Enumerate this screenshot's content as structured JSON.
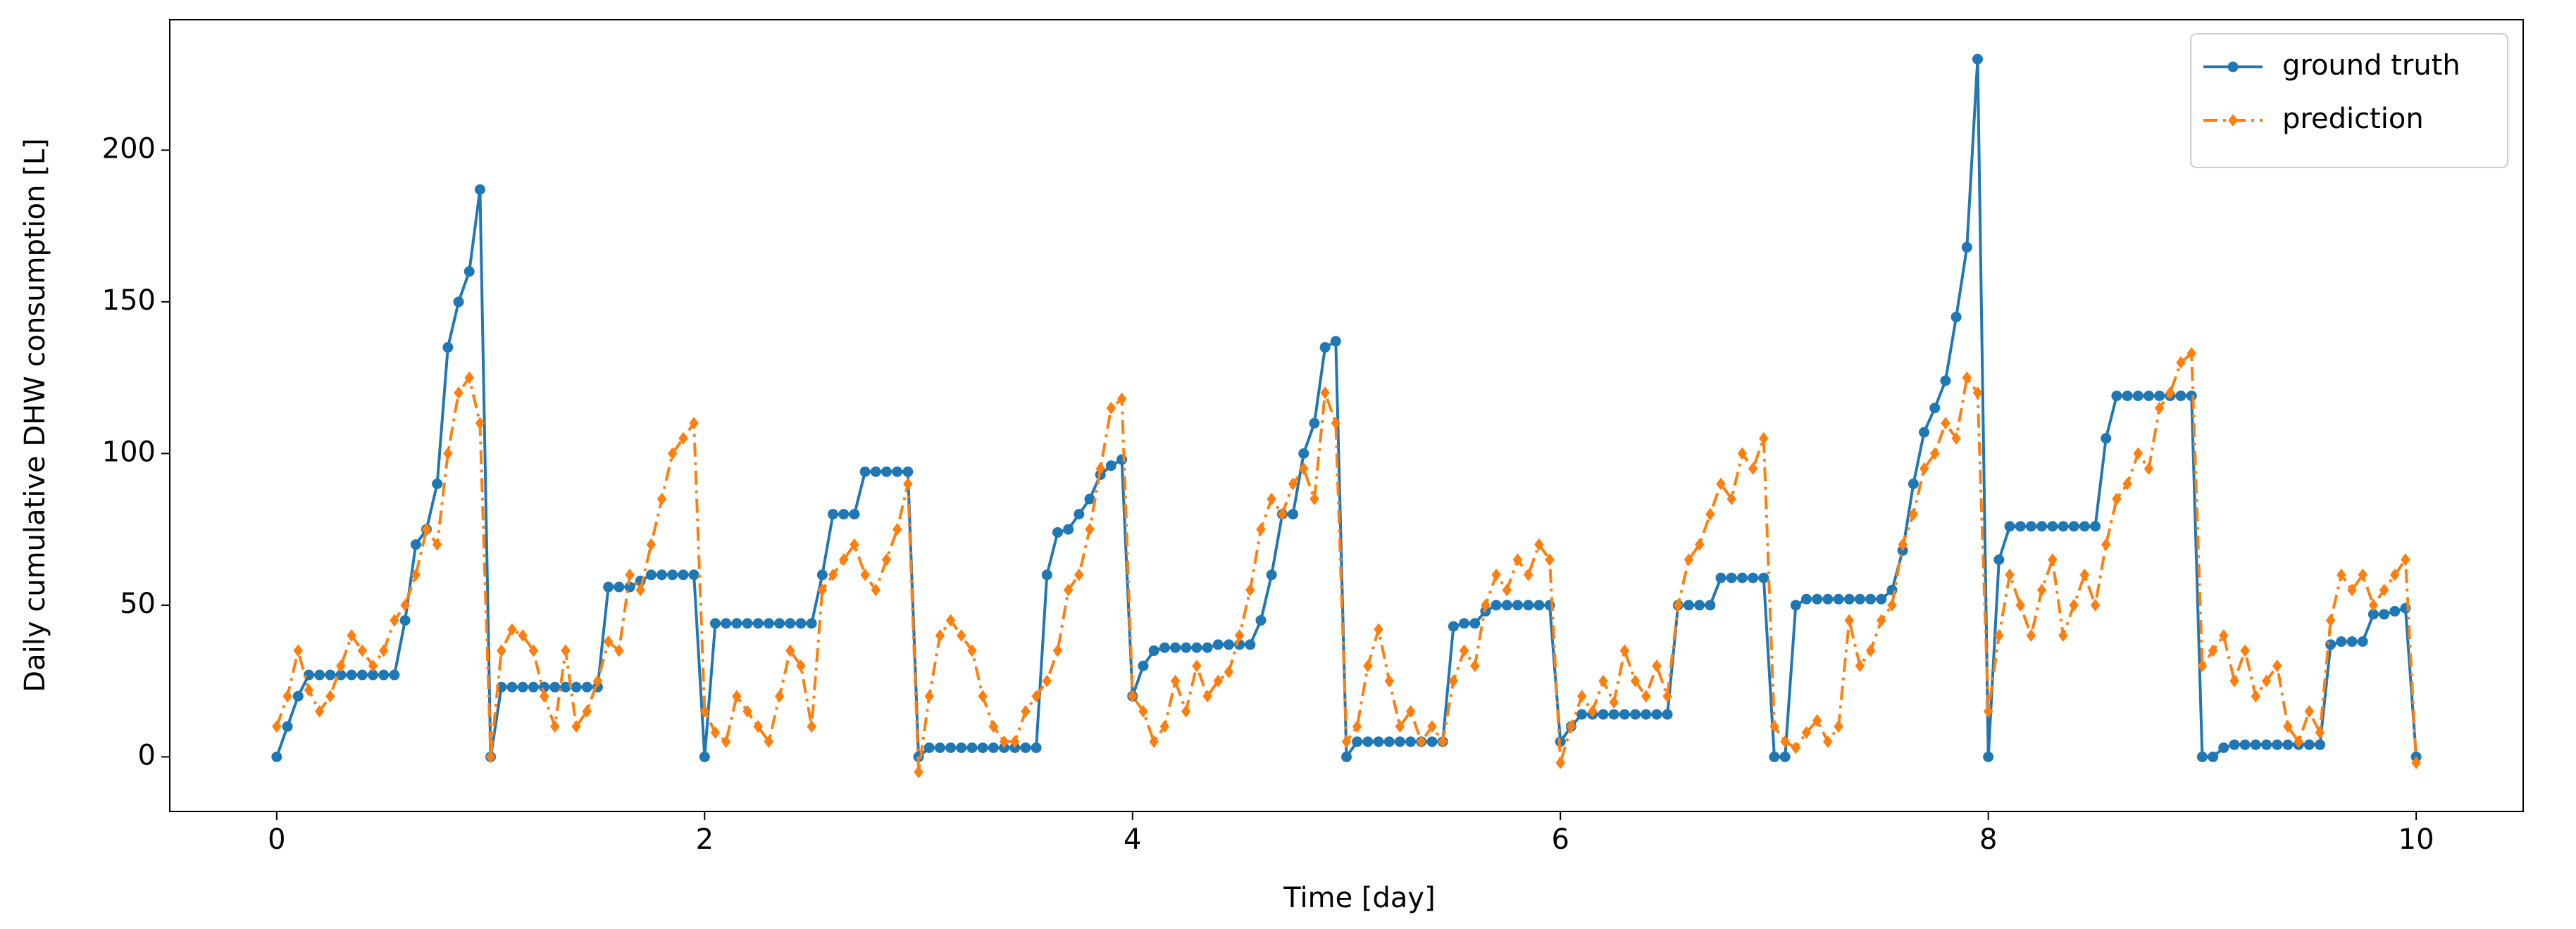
{
  "chart_data": {
    "type": "line",
    "xlabel": "Time [day]",
    "ylabel": "Daily cumulative DHW consumption [L]",
    "xlim": [
      -0.5,
      10.5
    ],
    "ylim": [
      -18,
      243
    ],
    "xticks": [
      0,
      2,
      4,
      6,
      8,
      10
    ],
    "yticks": [
      0,
      50,
      100,
      150,
      200
    ],
    "legend": "upper right",
    "x": [
      0,
      0.05,
      0.1,
      0.15,
      0.2,
      0.25,
      0.3,
      0.35,
      0.4,
      0.45,
      0.5,
      0.55,
      0.6,
      0.65,
      0.7,
      0.75,
      0.8,
      0.85,
      0.9,
      0.95,
      1,
      1.05,
      1.1,
      1.15,
      1.2,
      1.25,
      1.3,
      1.35,
      1.4,
      1.45,
      1.5,
      1.55,
      1.6,
      1.65,
      1.7,
      1.75,
      1.8,
      1.85,
      1.9,
      1.95,
      2,
      2.05,
      2.1,
      2.15,
      2.2,
      2.25,
      2.3,
      2.35,
      2.4,
      2.45,
      2.5,
      2.55,
      2.6,
      2.65,
      2.7,
      2.75,
      2.8,
      2.85,
      2.9,
      2.95,
      3,
      3.05,
      3.1,
      3.15,
      3.2,
      3.25,
      3.3,
      3.35,
      3.4,
      3.45,
      3.5,
      3.55,
      3.6,
      3.65,
      3.7,
      3.75,
      3.8,
      3.85,
      3.9,
      3.95,
      4,
      4.05,
      4.1,
      4.15,
      4.2,
      4.25,
      4.3,
      4.35,
      4.4,
      4.45,
      4.5,
      4.55,
      4.6,
      4.65,
      4.7,
      4.75,
      4.8,
      4.85,
      4.9,
      4.95,
      5,
      5.05,
      5.1,
      5.15,
      5.2,
      5.25,
      5.3,
      5.35,
      5.4,
      5.45,
      5.5,
      5.55,
      5.6,
      5.65,
      5.7,
      5.75,
      5.8,
      5.85,
      5.9,
      5.95,
      6,
      6.05,
      6.1,
      6.15,
      6.2,
      6.25,
      6.3,
      6.35,
      6.4,
      6.45,
      6.5,
      6.55,
      6.6,
      6.65,
      6.7,
      6.75,
      6.8,
      6.85,
      6.9,
      6.95,
      7,
      7.05,
      7.1,
      7.15,
      7.2,
      7.25,
      7.3,
      7.35,
      7.4,
      7.45,
      7.5,
      7.55,
      7.6,
      7.65,
      7.7,
      7.75,
      7.8,
      7.85,
      7.9,
      7.95,
      8,
      8.05,
      8.1,
      8.15,
      8.2,
      8.25,
      8.3,
      8.35,
      8.4,
      8.45,
      8.5,
      8.55,
      8.6,
      8.65,
      8.7,
      8.75,
      8.8,
      8.85,
      8.9,
      8.95,
      9,
      9.05,
      9.1,
      9.15,
      9.2,
      9.25,
      9.3,
      9.35,
      9.4,
      9.45,
      9.5,
      9.55,
      9.6,
      9.65,
      9.7,
      9.75,
      9.8,
      9.85,
      9.9,
      9.95,
      10
    ],
    "series": [
      {
        "name": "ground truth",
        "color": "#1f77b4",
        "linestyle": "solid",
        "marker": "circle",
        "values": [
          0,
          10,
          20,
          27,
          27,
          27,
          27,
          27,
          27,
          27,
          27,
          27,
          45,
          70,
          75,
          90,
          135,
          150,
          160,
          187,
          0,
          23,
          23,
          23,
          23,
          23,
          23,
          23,
          23,
          23,
          23,
          56,
          56,
          56,
          58,
          60,
          60,
          60,
          60,
          60,
          0,
          44,
          44,
          44,
          44,
          44,
          44,
          44,
          44,
          44,
          44,
          60,
          80,
          80,
          80,
          94,
          94,
          94,
          94,
          94,
          0,
          3,
          3,
          3,
          3,
          3,
          3,
          3,
          3,
          3,
          3,
          3,
          60,
          74,
          75,
          80,
          85,
          93,
          96,
          98,
          20,
          30,
          35,
          36,
          36,
          36,
          36,
          36,
          37,
          37,
          37,
          37,
          45,
          60,
          80,
          80,
          100,
          110,
          135,
          137,
          0,
          5,
          5,
          5,
          5,
          5,
          5,
          5,
          5,
          5,
          43,
          44,
          44,
          48,
          50,
          50,
          50,
          50,
          50,
          50,
          5,
          10,
          14,
          14,
          14,
          14,
          14,
          14,
          14,
          14,
          14,
          50,
          50,
          50,
          50,
          59,
          59,
          59,
          59,
          59,
          0,
          0,
          50,
          52,
          52,
          52,
          52,
          52,
          52,
          52,
          52,
          55,
          68,
          90,
          107,
          115,
          124,
          145,
          168,
          230,
          0,
          65,
          76,
          76,
          76,
          76,
          76,
          76,
          76,
          76,
          76,
          105,
          119,
          119,
          119,
          119,
          119,
          119,
          119,
          119,
          0,
          0,
          3,
          4,
          4,
          4,
          4,
          4,
          4,
          4,
          4,
          4,
          37,
          38,
          38,
          38,
          47,
          47,
          48,
          49,
          0
        ]
      },
      {
        "name": "prediction",
        "color": "#ff7f0e",
        "linestyle": "dashdot",
        "marker": "diamond",
        "values": [
          10,
          20,
          35,
          22,
          15,
          20,
          30,
          40,
          35,
          30,
          35,
          45,
          50,
          60,
          75,
          70,
          100,
          120,
          125,
          110,
          0,
          35,
          42,
          40,
          35,
          20,
          10,
          35,
          10,
          15,
          25,
          38,
          35,
          60,
          55,
          70,
          85,
          100,
          105,
          110,
          15,
          8,
          5,
          20,
          15,
          10,
          5,
          20,
          35,
          30,
          10,
          55,
          60,
          65,
          70,
          60,
          55,
          65,
          75,
          90,
          -5,
          20,
          40,
          45,
          40,
          35,
          20,
          10,
          5,
          5,
          15,
          20,
          25,
          35,
          55,
          60,
          75,
          95,
          115,
          118,
          20,
          15,
          5,
          10,
          25,
          15,
          30,
          20,
          25,
          28,
          40,
          55,
          75,
          85,
          80,
          90,
          95,
          85,
          120,
          110,
          5,
          10,
          30,
          42,
          25,
          10,
          15,
          5,
          10,
          5,
          25,
          35,
          30,
          50,
          60,
          55,
          65,
          60,
          70,
          65,
          -2,
          10,
          20,
          15,
          25,
          18,
          35,
          25,
          20,
          30,
          20,
          50,
          65,
          70,
          80,
          90,
          85,
          100,
          95,
          105,
          10,
          5,
          3,
          8,
          12,
          5,
          10,
          45,
          30,
          35,
          45,
          50,
          70,
          80,
          95,
          100,
          110,
          105,
          125,
          120,
          15,
          40,
          60,
          50,
          40,
          55,
          65,
          40,
          50,
          60,
          50,
          70,
          85,
          90,
          100,
          95,
          115,
          120,
          130,
          133,
          30,
          35,
          40,
          25,
          35,
          20,
          25,
          30,
          10,
          5,
          15,
          8,
          45,
          60,
          55,
          60,
          50,
          55,
          60,
          65,
          -2
        ]
      }
    ]
  }
}
